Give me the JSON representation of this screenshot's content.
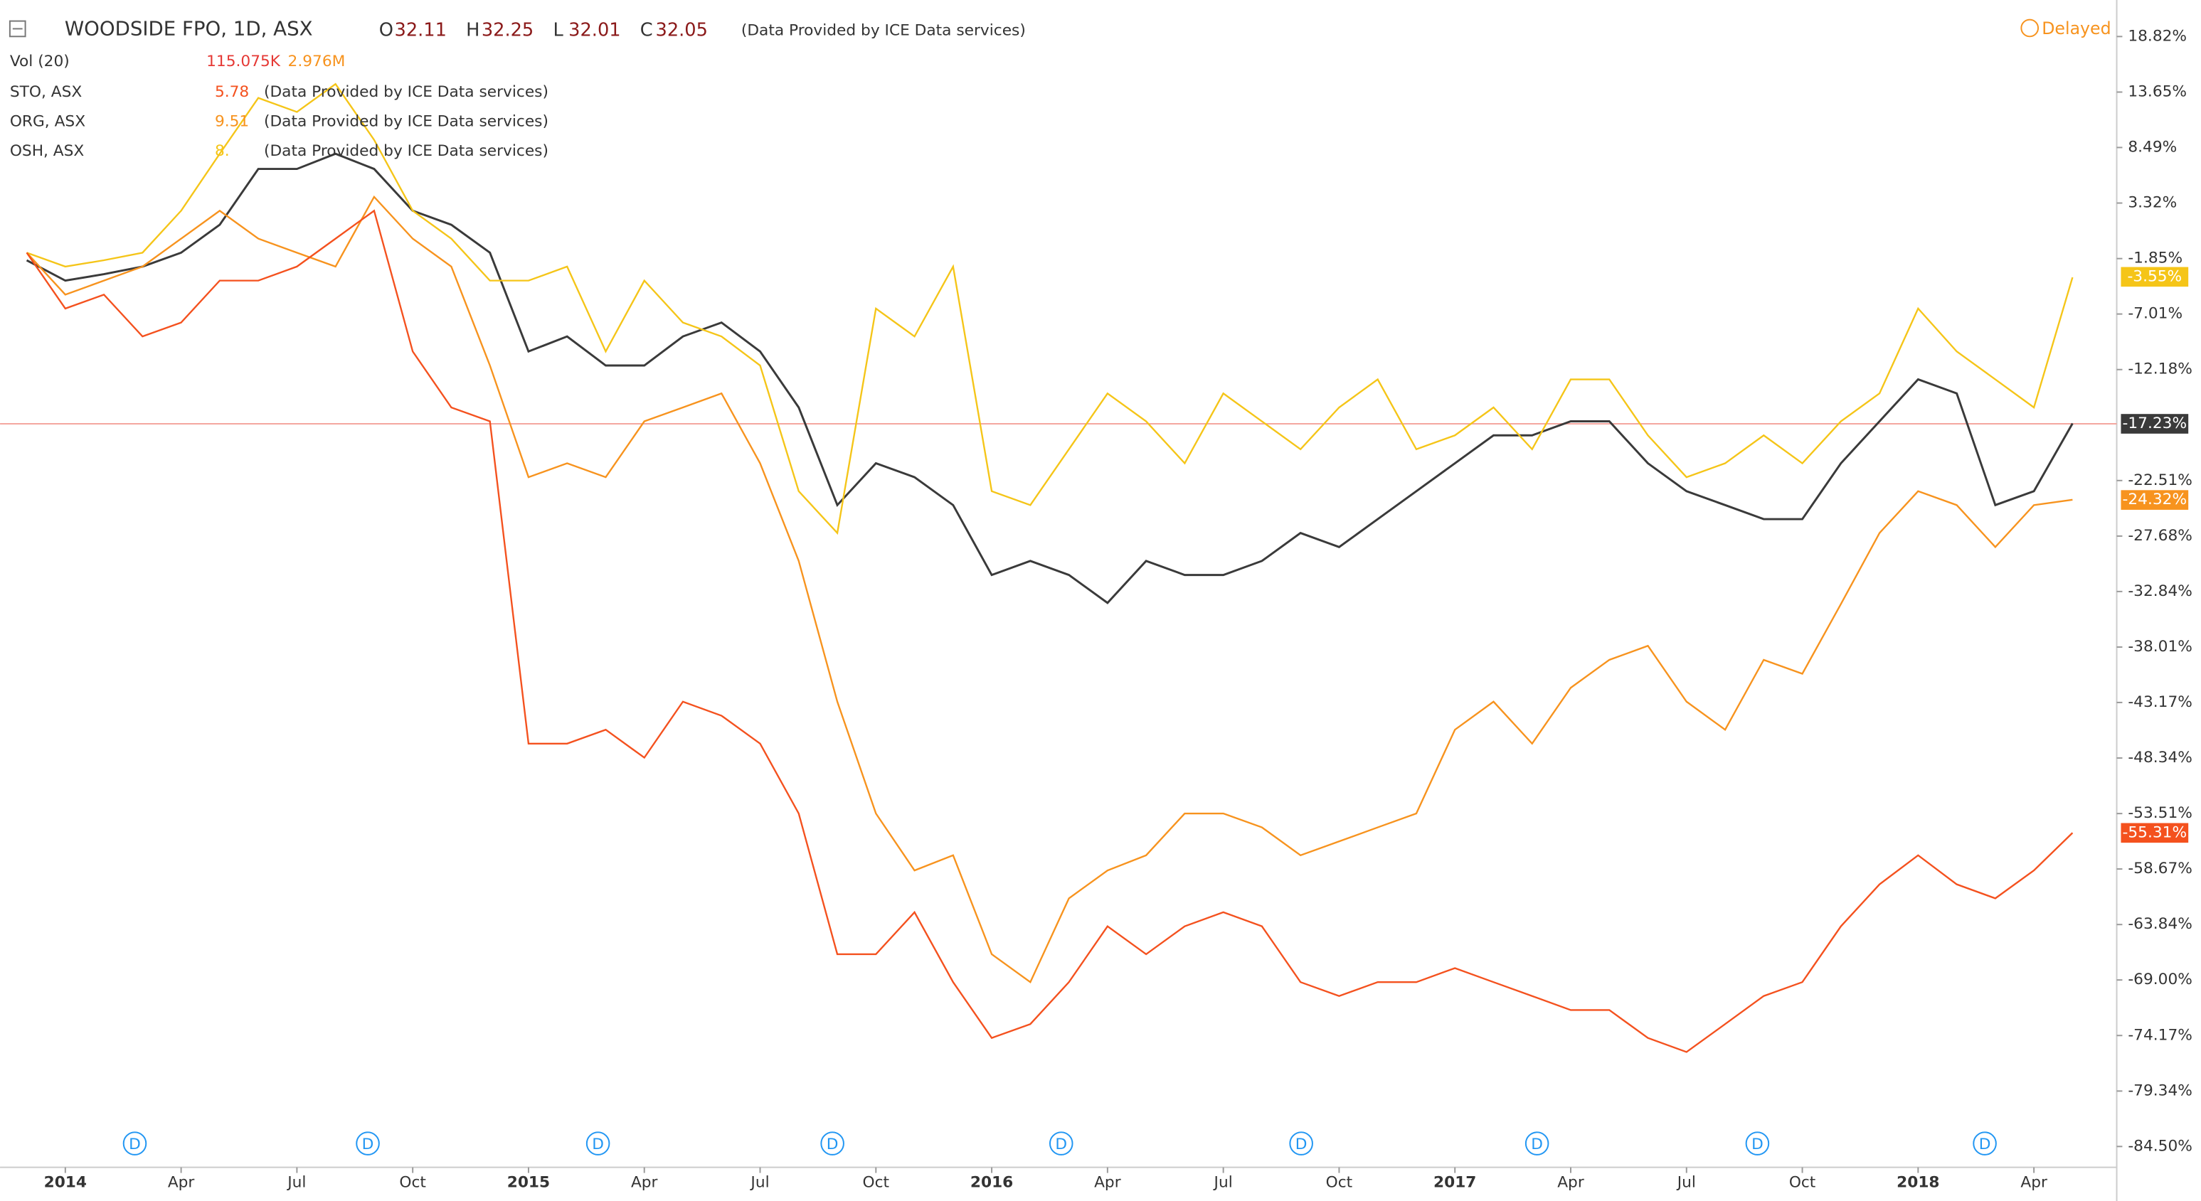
{
  "chart_data": {
    "type": "line",
    "header": {
      "symbol": "WOODSIDE FPO, 1D, ASX",
      "ohlc": [
        {
          "key": "O",
          "value": "32.11"
        },
        {
          "key": "H",
          "value": "32.25"
        },
        {
          "key": "L",
          "value": "32.01"
        },
        {
          "key": "C",
          "value": "32.05"
        }
      ],
      "source": "(Data Provided by ICE Data services)",
      "delayed": "Delayed",
      "volume": {
        "name": "Vol (20)",
        "values": [
          "115.075K",
          "2.976M"
        ]
      },
      "compares": [
        {
          "name": "STO, ASX",
          "value": "5.78",
          "color": "#f4511e",
          "source": "(Data Provided by ICE Data services)"
        },
        {
          "name": "ORG, ASX",
          "value": "9.51",
          "color": "#f7931e",
          "source": "(Data Provided by ICE Data services)"
        },
        {
          "name": "OSH, ASX",
          "value": "8.",
          "color": "#f5c518",
          "source": "(Data Provided by ICE Data services)"
        }
      ]
    },
    "dividend_label": "D",
    "categories": [
      null,
      "2014",
      null,
      null,
      "Apr",
      null,
      null,
      "Jul",
      null,
      null,
      "Oct",
      null,
      null,
      "2015",
      null,
      null,
      "Apr",
      null,
      null,
      "Jul",
      null,
      null,
      "Oct",
      null,
      null,
      "2016",
      null,
      null,
      "Apr",
      null,
      null,
      "Jul",
      null,
      null,
      "Oct",
      null,
      null,
      "2017",
      null,
      null,
      "Apr",
      null,
      null,
      "Jul",
      null,
      null,
      "Oct",
      null,
      null,
      "2018",
      null,
      null,
      "Apr",
      null
    ],
    "series": [
      {
        "name": "WOODSIDE FPO",
        "color": "#3a3a3a",
        "last_value": -17.23,
        "last_label": "-17.23%",
        "values": [
          -2.0,
          -3.9,
          -3.3,
          -2.6,
          -1.3,
          1.3,
          6.5,
          6.5,
          7.9,
          6.5,
          2.6,
          1.3,
          -1.3,
          -10.5,
          -9.1,
          -11.8,
          -11.8,
          -9.1,
          -7.8,
          -10.5,
          -15.7,
          -24.8,
          -20.9,
          -22.2,
          -24.8,
          -31.3,
          -30.0,
          -31.3,
          -33.9,
          -30.0,
          -31.3,
          -31.3,
          -30.0,
          -27.4,
          -28.7,
          -26.1,
          -23.5,
          -20.9,
          -18.3,
          -18.3,
          -17.0,
          -17.0,
          -20.9,
          -23.5,
          -24.8,
          -26.1,
          -26.1,
          -20.9,
          -17.0,
          -13.1,
          -14.4,
          -24.8,
          -23.5,
          -17.2
        ]
      },
      {
        "name": "OSH, ASX",
        "color": "#f5c518",
        "last_value": -3.55,
        "last_label": "-3.55%",
        "values": [
          -1.3,
          -2.6,
          -2.0,
          -1.3,
          2.6,
          7.9,
          13.1,
          11.8,
          14.4,
          9.2,
          2.6,
          0.0,
          -3.9,
          -3.9,
          -2.6,
          -10.5,
          -3.9,
          -7.8,
          -9.1,
          -11.8,
          -23.5,
          -27.4,
          -6.5,
          -9.1,
          -2.6,
          -23.5,
          -24.8,
          -19.6,
          -14.4,
          -17.0,
          -20.9,
          -14.4,
          -17.0,
          -19.6,
          -15.7,
          -13.1,
          -19.6,
          -18.3,
          -15.7,
          -19.6,
          -13.1,
          -13.1,
          -18.3,
          -22.2,
          -20.9,
          -18.3,
          -20.9,
          -17.0,
          -14.4,
          -6.5,
          -10.5,
          -13.1,
          -15.7,
          -3.6
        ]
      },
      {
        "name": "ORG, ASX",
        "color": "#f7931e",
        "last_value": -24.32,
        "last_label": "-24.32%",
        "values": [
          -1.3,
          -5.2,
          -3.9,
          -2.6,
          0.0,
          2.6,
          0.0,
          -1.3,
          -2.6,
          3.9,
          0.0,
          -2.6,
          -11.8,
          -22.2,
          -20.9,
          -22.2,
          -17.0,
          -15.7,
          -14.4,
          -20.9,
          -30.0,
          -43.1,
          -53.5,
          -58.8,
          -57.4,
          -66.6,
          -69.2,
          -61.4,
          -58.8,
          -57.4,
          -53.5,
          -53.5,
          -54.8,
          -57.4,
          -56.1,
          -54.8,
          -53.5,
          -45.7,
          -43.1,
          -47.0,
          -41.8,
          -39.2,
          -37.9,
          -43.1,
          -45.7,
          -39.2,
          -40.5,
          -34.0,
          -27.4,
          -23.5,
          -24.8,
          -28.7,
          -24.8,
          -24.3
        ]
      },
      {
        "name": "STO, ASX",
        "color": "#f4511e",
        "last_value": -55.31,
        "last_label": "-55.31%",
        "values": [
          -1.3,
          -6.5,
          -5.2,
          -9.1,
          -7.8,
          -3.9,
          -3.9,
          -2.6,
          0.0,
          2.6,
          -10.5,
          -15.7,
          -17.0,
          -47.0,
          -47.0,
          -45.7,
          -48.3,
          -43.1,
          -44.4,
          -47.0,
          -53.5,
          -66.6,
          -66.6,
          -62.7,
          -69.2,
          -74.4,
          -73.1,
          -69.2,
          -64.0,
          -66.6,
          -64.0,
          -62.7,
          -64.0,
          -69.2,
          -70.5,
          -69.2,
          -69.2,
          -67.9,
          -69.2,
          -70.5,
          -71.8,
          -71.8,
          -74.4,
          -75.7,
          -73.1,
          -70.5,
          -69.2,
          -64.0,
          -60.1,
          -57.4,
          -60.1,
          -61.4,
          -58.8,
          -55.3
        ]
      }
    ],
    "ylim": [
      -86.44,
      22.22
    ],
    "yticks": [
      {
        "value": 18.82,
        "label": "18.82%"
      },
      {
        "value": 13.65,
        "label": "13.65%"
      },
      {
        "value": 8.49,
        "label": "8.49%"
      },
      {
        "value": 3.32,
        "label": "3.32%"
      },
      {
        "value": -1.85,
        "label": "-1.85%"
      },
      {
        "value": -7.01,
        "label": "-7.01%"
      },
      {
        "value": -12.18,
        "label": "-12.18%"
      },
      {
        "value": -22.51,
        "label": "-22.51%"
      },
      {
        "value": -27.68,
        "label": "-27.68%"
      },
      {
        "value": -32.84,
        "label": "-32.84%"
      },
      {
        "value": -38.01,
        "label": "-38.01%"
      },
      {
        "value": -43.17,
        "label": "-43.17%"
      },
      {
        "value": -48.34,
        "label": "-48.34%"
      },
      {
        "value": -53.51,
        "label": "-53.51%"
      },
      {
        "value": -58.67,
        "label": "-58.67%"
      },
      {
        "value": -63.84,
        "label": "-63.84%"
      },
      {
        "value": -69.0,
        "label": "-69.00%"
      },
      {
        "value": -74.17,
        "label": "-74.17%"
      },
      {
        "value": -79.34,
        "label": "-79.34%"
      },
      {
        "value": -84.5,
        "label": "-84.50%"
      }
    ],
    "price_line": {
      "series": 0,
      "color": "#f4a7a0"
    }
  }
}
